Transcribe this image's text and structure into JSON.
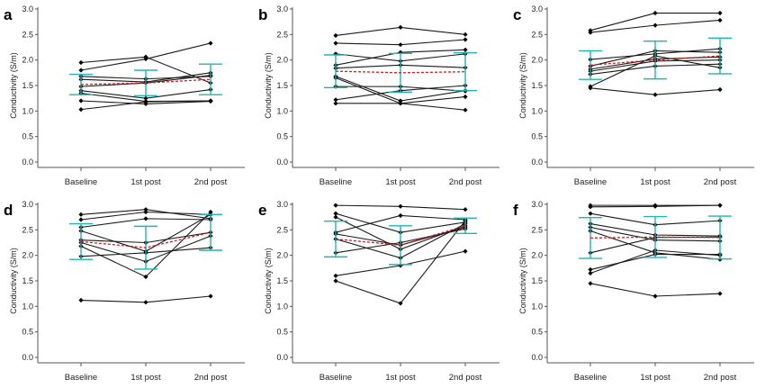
{
  "chart_data": [
    {
      "panel": "a",
      "type": "line",
      "categories": [
        "Baseline",
        "1st post",
        "2nd post"
      ],
      "ylabel": "Conductivity (S/m)",
      "ylim": [
        0,
        3
      ],
      "yticks": [
        0.0,
        0.5,
        1.0,
        1.5,
        2.0,
        2.5,
        3.0
      ],
      "subjects": [
        [
          1.95,
          2.06,
          1.55
        ],
        [
          1.8,
          2.02,
          2.33
        ],
        [
          1.68,
          1.63,
          1.68
        ],
        [
          1.62,
          1.57,
          1.75
        ],
        [
          1.48,
          1.55,
          1.7
        ],
        [
          1.4,
          1.25,
          1.42
        ],
        [
          1.35,
          1.19,
          1.2
        ],
        [
          1.2,
          1.14,
          1.19
        ],
        [
          1.03,
          1.18,
          1.2
        ]
      ],
      "mean": [
        1.52,
        1.55,
        1.62
      ],
      "sd": [
        0.2,
        0.25,
        0.3
      ],
      "colors": {
        "subject": "#1a1a1a",
        "mean": "#d21f1f",
        "error": "#1fb5b5"
      }
    },
    {
      "panel": "b",
      "type": "line",
      "categories": [
        "Baseline",
        "1st post",
        "2nd post"
      ],
      "ylabel": "Conductivity (S/m)",
      "ylim": [
        0,
        3
      ],
      "yticks": [
        0.0,
        0.5,
        1.0,
        1.5,
        2.0,
        2.5,
        3.0
      ],
      "subjects": [
        [
          2.48,
          2.64,
          2.5
        ],
        [
          2.33,
          2.3,
          2.4
        ],
        [
          2.12,
          1.98,
          2.12
        ],
        [
          1.9,
          2.15,
          2.2
        ],
        [
          1.84,
          1.9,
          1.85
        ],
        [
          1.68,
          1.2,
          1.4
        ],
        [
          1.65,
          1.15,
          1.02
        ],
        [
          1.48,
          1.48,
          1.39
        ],
        [
          1.22,
          1.4,
          1.5
        ],
        [
          1.15,
          1.15,
          1.28
        ]
      ],
      "mean": [
        1.78,
        1.75,
        1.77
      ],
      "sd": [
        0.32,
        0.38,
        0.37
      ],
      "colors": {
        "subject": "#1a1a1a",
        "mean": "#d21f1f",
        "error": "#1fb5b5"
      }
    },
    {
      "panel": "c",
      "type": "line",
      "categories": [
        "Baseline",
        "1st post",
        "2nd post"
      ],
      "ylabel": "Conductivity (S/m)",
      "ylim": [
        0,
        3
      ],
      "yticks": [
        0.0,
        0.5,
        1.0,
        1.5,
        2.0,
        2.5,
        3.0
      ],
      "subjects": [
        [
          2.58,
          2.92,
          2.92
        ],
        [
          2.54,
          2.68,
          2.78
        ],
        [
          2.01,
          2.12,
          2.22
        ],
        [
          1.88,
          2.18,
          2.15
        ],
        [
          1.82,
          2.02,
          2.06
        ],
        [
          1.78,
          1.98,
          2.0
        ],
        [
          1.72,
          1.88,
          1.92
        ],
        [
          1.48,
          2.08,
          1.85
        ],
        [
          1.45,
          1.32,
          1.42
        ]
      ],
      "mean": [
        1.9,
        2.0,
        2.08
      ],
      "sd": [
        0.28,
        0.37,
        0.35
      ],
      "colors": {
        "subject": "#1a1a1a",
        "mean": "#d21f1f",
        "error": "#1fb5b5"
      }
    },
    {
      "panel": "d",
      "type": "line",
      "categories": [
        "Baseline",
        "1st post",
        "2nd post"
      ],
      "ylabel": "Conductivity (S/m)",
      "ylim": [
        0,
        3
      ],
      "yticks": [
        0.0,
        0.5,
        1.0,
        1.5,
        2.0,
        2.5,
        3.0
      ],
      "subjects": [
        [
          2.8,
          2.9,
          2.72
        ],
        [
          2.7,
          2.85,
          2.8
        ],
        [
          2.55,
          2.72,
          2.7
        ],
        [
          2.48,
          2.08,
          2.8
        ],
        [
          2.3,
          2.25,
          2.45
        ],
        [
          2.25,
          1.88,
          2.38
        ],
        [
          2.18,
          1.58,
          2.85
        ],
        [
          1.98,
          2.05,
          2.15
        ],
        [
          1.12,
          1.08,
          1.2
        ]
      ],
      "mean": [
        2.27,
        2.15,
        2.45
      ],
      "sd": [
        0.35,
        0.42,
        0.35
      ],
      "colors": {
        "subject": "#1a1a1a",
        "mean": "#d21f1f",
        "error": "#1fb5b5"
      }
    },
    {
      "panel": "e",
      "type": "line",
      "categories": [
        "Baseline",
        "1st post",
        "2nd post"
      ],
      "ylabel": "Conductivity (S/m)",
      "ylim": [
        0,
        3
      ],
      "yticks": [
        0.0,
        0.5,
        1.0,
        1.5,
        2.0,
        2.5,
        3.0
      ],
      "subjects": [
        [
          2.98,
          2.96,
          2.9
        ],
        [
          2.82,
          2.45,
          2.65
        ],
        [
          2.75,
          2.12,
          2.58
        ],
        [
          2.45,
          2.78,
          2.7
        ],
        [
          2.42,
          2.2,
          2.55
        ],
        [
          2.32,
          1.95,
          2.62
        ],
        [
          2.05,
          2.25,
          2.52
        ],
        [
          1.6,
          1.8,
          2.08
        ],
        [
          1.5,
          1.06,
          2.68
        ]
      ],
      "mean": [
        2.32,
        2.2,
        2.58
      ],
      "sd": [
        0.35,
        0.38,
        0.15
      ],
      "colors": {
        "subject": "#1a1a1a",
        "mean": "#d21f1f",
        "error": "#1fb5b5"
      }
    },
    {
      "panel": "f",
      "type": "line",
      "categories": [
        "Baseline",
        "1st post",
        "2nd post"
      ],
      "ylabel": "Conductivity (S/m)",
      "ylim": [
        0,
        3
      ],
      "yticks": [
        0.0,
        0.5,
        1.0,
        1.5,
        2.0,
        2.5,
        3.0
      ],
      "subjects": [
        [
          2.98,
          2.98,
          2.98
        ],
        [
          2.95,
          2.96,
          2.98
        ],
        [
          2.82,
          2.6,
          2.68
        ],
        [
          2.62,
          2.4,
          2.38
        ],
        [
          2.55,
          2.3,
          2.28
        ],
        [
          2.48,
          2.05,
          1.92
        ],
        [
          2.05,
          2.35,
          2.36
        ],
        [
          1.72,
          2.02,
          2.02
        ],
        [
          1.65,
          2.1,
          2.0
        ],
        [
          1.45,
          1.2,
          1.25
        ]
      ],
      "mean": [
        2.34,
        2.36,
        2.35
      ],
      "sd": [
        0.4,
        0.4,
        0.42
      ],
      "colors": {
        "subject": "#1a1a1a",
        "mean": "#d21f1f",
        "error": "#1fb5b5"
      }
    }
  ]
}
